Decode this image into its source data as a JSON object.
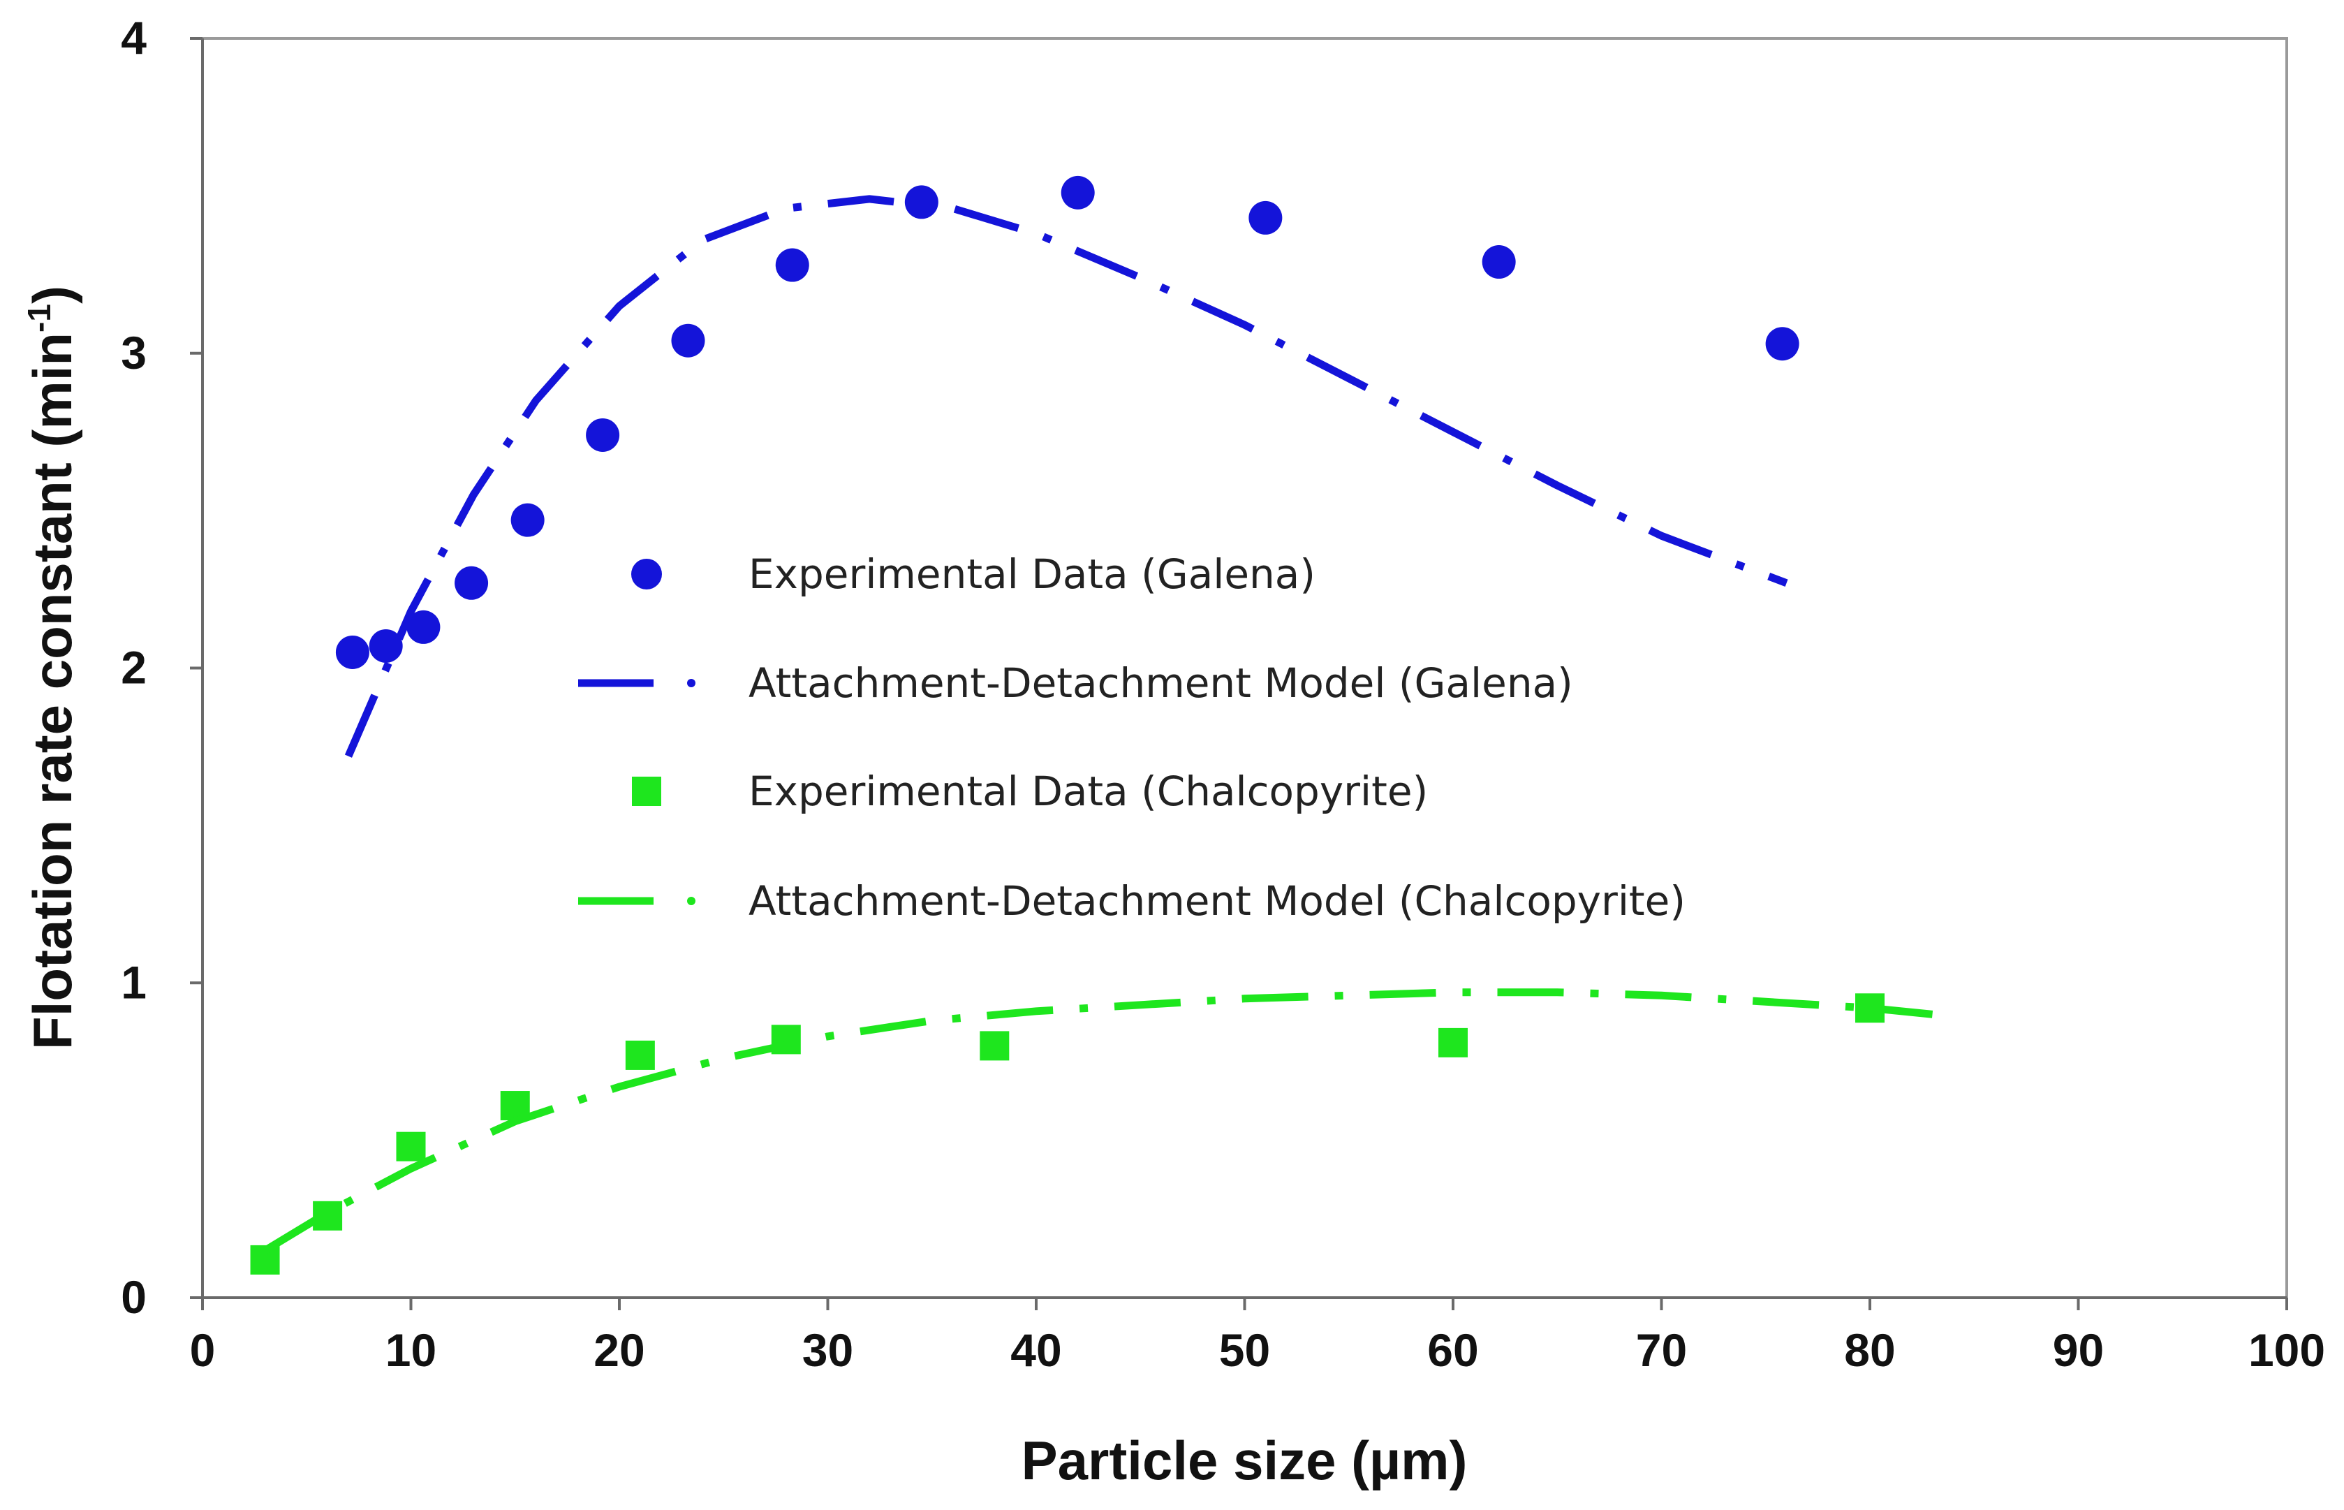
{
  "chart_data": {
    "type": "scatter",
    "title": "",
    "xlabel": "Particle size (µm)",
    "ylabel": "Flotation rate constant (min",
    "ylabel_sup": "-1",
    "ylabel_close": ")",
    "xlim": [
      0,
      100
    ],
    "ylim": [
      0,
      4
    ],
    "xticks": [
      "0",
      "10",
      "20",
      "30",
      "40",
      "50",
      "60",
      "70",
      "80",
      "90",
      "100"
    ],
    "yticks": [
      "0",
      "1",
      "2",
      "3",
      "4"
    ],
    "grid": false,
    "legend_position": "center",
    "series": [
      {
        "name": "Experimental Data (Galena)",
        "kind": "marker",
        "marker": "circle",
        "color": "#1414d9",
        "x": [
          7.2,
          8.8,
          10.6,
          12.9,
          15.6,
          19.2,
          23.3,
          28.3,
          34.5,
          42.0,
          51.0,
          62.2,
          75.8
        ],
        "y": [
          2.05,
          2.07,
          2.13,
          2.27,
          2.47,
          2.74,
          3.04,
          3.28,
          3.48,
          3.51,
          3.43,
          3.29,
          3.03
        ]
      },
      {
        "name": "Attachment-Detachment Model (Galena)",
        "kind": "line",
        "color": "#1414d9",
        "x": [
          7,
          10,
          13,
          16,
          20,
          24,
          28,
          32,
          36,
          40,
          45,
          50,
          55,
          60,
          65,
          70,
          76
        ],
        "y": [
          1.72,
          2.18,
          2.55,
          2.85,
          3.15,
          3.36,
          3.46,
          3.49,
          3.46,
          3.38,
          3.24,
          3.09,
          2.92,
          2.75,
          2.58,
          2.42,
          2.27
        ]
      },
      {
        "name": "Experimental Data (Chalcopyrite)",
        "kind": "marker",
        "marker": "square",
        "color": "#1ee61e",
        "x": [
          3,
          6,
          10,
          15,
          21,
          28,
          38,
          60,
          80
        ],
        "y": [
          0.12,
          0.26,
          0.48,
          0.61,
          0.77,
          0.82,
          0.8,
          0.81,
          0.92
        ]
      },
      {
        "name": "Attachment-Detachment Model (Chalcopyrite)",
        "kind": "line",
        "color": "#1ee61e",
        "x": [
          3,
          6,
          10,
          15,
          20,
          25,
          30,
          35,
          40,
          45,
          50,
          55,
          60,
          65,
          70,
          75,
          80,
          83
        ],
        "y": [
          0.15,
          0.27,
          0.41,
          0.56,
          0.67,
          0.76,
          0.83,
          0.88,
          0.91,
          0.93,
          0.95,
          0.96,
          0.97,
          0.97,
          0.96,
          0.94,
          0.92,
          0.9
        ]
      }
    ]
  }
}
